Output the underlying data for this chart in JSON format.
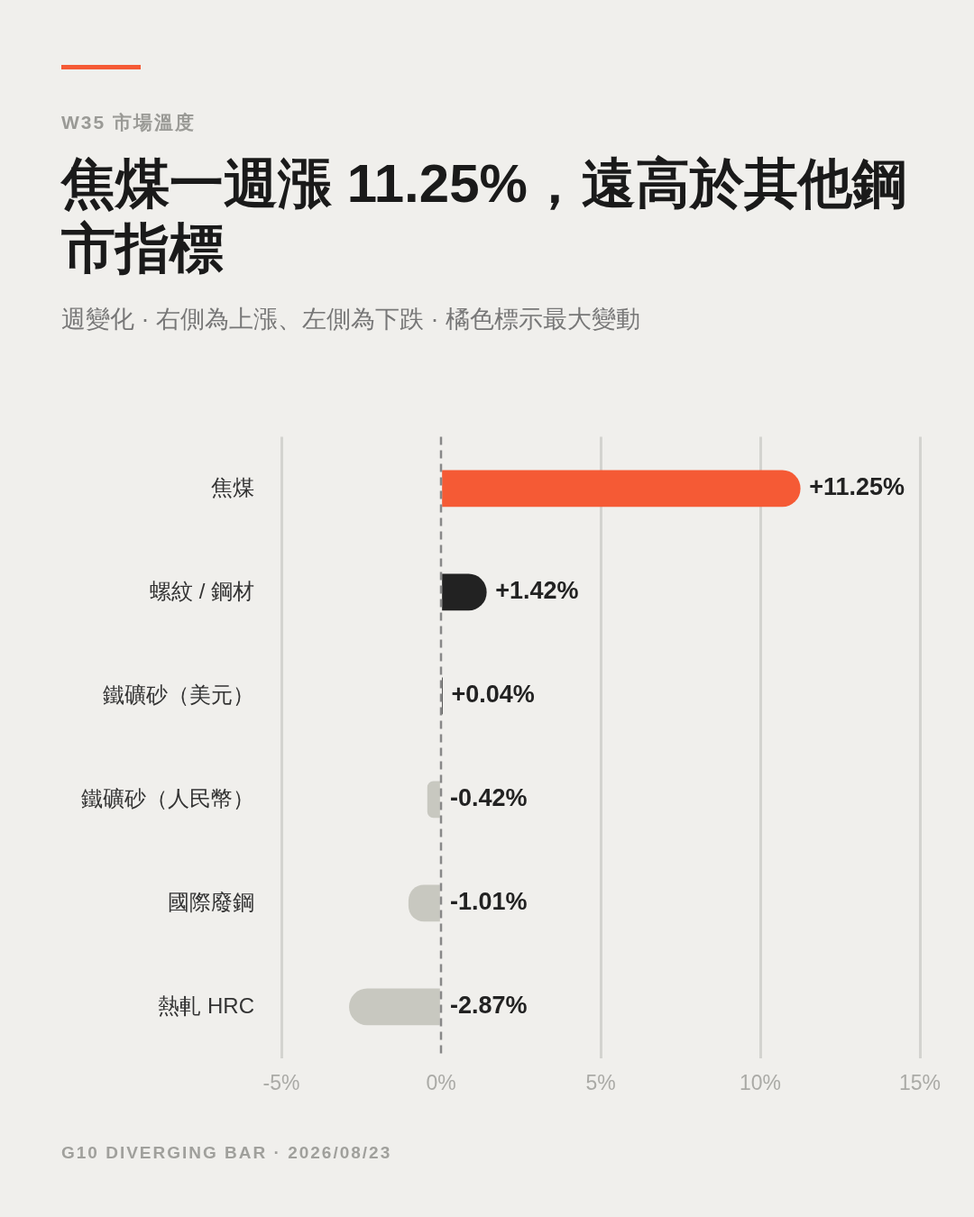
{
  "chart_data": {
    "type": "bar",
    "orientation": "horizontal",
    "subtitle": "W35 市場溫度",
    "title": "焦煤一週漲 11.25%，遠高於其他鋼市指標",
    "annotations": [
      "週變化 · 右側為上漲、左側為下跌 · 橘色標示最大變動",
      "G10 DIVERGING BAR · 2026/08/23"
    ],
    "categories": [
      "焦煤",
      "螺紋 / 鋼材",
      "鐵礦砂（美元）",
      "鐵礦砂（人民幣）",
      "國際廢鋼",
      "熱軋 HRC"
    ],
    "values": [
      11.25,
      1.42,
      0.04,
      -0.42,
      -1.01,
      -2.87
    ],
    "colors": [
      "#f55a35",
      "#222222",
      "#222222",
      "#c8c8c0",
      "#c8c8c0",
      "#c8c8c0"
    ],
    "value_labels": [
      "+11.25%",
      "+1.42%",
      "+0.04%",
      "-0.42%",
      "-1.01%",
      "-2.87%"
    ],
    "xlim": [
      -5,
      15
    ],
    "xticks": [
      {
        "value": -5,
        "label": "-5%"
      },
      {
        "value": 0,
        "label": "0%"
      },
      {
        "value": 5,
        "label": "5%"
      },
      {
        "value": 10,
        "label": "10%"
      },
      {
        "value": 15,
        "label": "15%"
      }
    ],
    "grid": "x",
    "ref_lines": [
      {
        "axis": "x",
        "value": 0,
        "label": null,
        "color": "#888888",
        "line_style": "dashed"
      }
    ],
    "legend": false
  }
}
